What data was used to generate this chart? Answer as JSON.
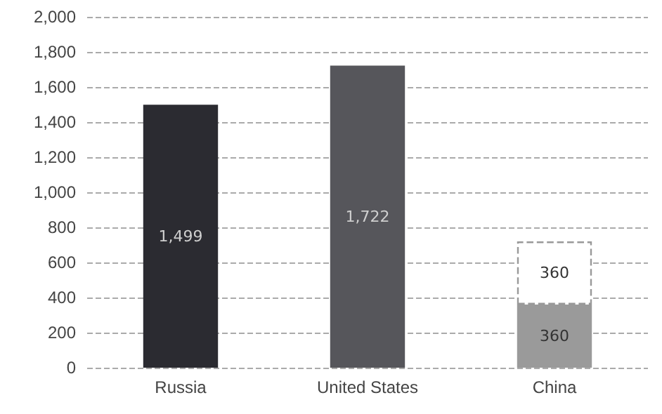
{
  "chart_data": {
    "type": "bar",
    "stacked": true,
    "categories": [
      "Russia",
      "United States",
      "China"
    ],
    "series": [
      {
        "colors": [
          "#2b2b31",
          "#56565b",
          "#9a9a9a"
        ],
        "values": [
          1499,
          1722,
          360
        ],
        "value_labels": [
          "1,499",
          "1,722",
          "360"
        ]
      },
      {
        "color": "#ffffff",
        "line_style": "dashed",
        "values": [
          null,
          null,
          360
        ],
        "value_labels": [
          null,
          null,
          "360"
        ]
      }
    ],
    "ylim": [
      0,
      2000
    ],
    "yticks": [
      0,
      200,
      400,
      600,
      800,
      {
        "value": 1000,
        "label": "1,000"
      },
      {
        "value": 1200,
        "label": "1,200"
      },
      {
        "value": 1400,
        "label": "1,400"
      },
      {
        "value": 1600,
        "label": "1,600"
      },
      {
        "value": 1800,
        "label": "1,800"
      },
      {
        "value": 2000,
        "label": "2,000"
      }
    ],
    "grid": "y"
  }
}
